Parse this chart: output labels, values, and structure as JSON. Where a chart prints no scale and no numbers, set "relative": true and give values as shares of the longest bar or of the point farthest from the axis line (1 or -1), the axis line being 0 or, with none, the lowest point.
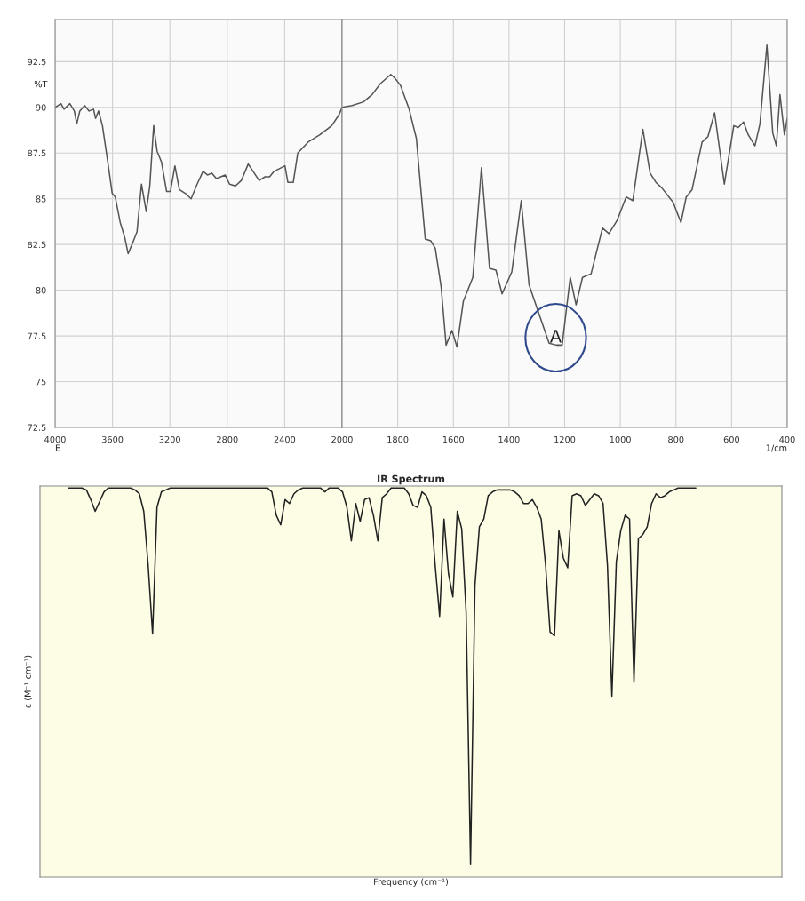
{
  "chart_data": [
    {
      "type": "line",
      "ylabel": "%T",
      "xlabel": "E",
      "grid": true,
      "tick_labels": "xy",
      "xlim": [
        4000,
        2000
      ],
      "ylim": [
        72.5,
        94.8
      ],
      "xticks": [
        4000,
        3600,
        3200,
        2800,
        2400,
        2000
      ],
      "yticks": [
        72.5,
        75,
        77.5,
        80,
        82.5,
        85,
        87.5,
        90,
        92.5
      ],
      "series": [
        {
          "color": "#555555",
          "x": [
            4000,
            3959,
            3938,
            3897,
            3866,
            3849,
            3828,
            3794,
            3763,
            3732,
            3718,
            3697,
            3670,
            3629,
            3602,
            3581,
            3546,
            3515,
            3491,
            3464,
            3429,
            3398,
            3365,
            3340,
            3313,
            3289,
            3258,
            3223,
            3196,
            3165,
            3134,
            3093,
            3052,
            3010,
            2969,
            2938,
            2907,
            2876,
            2815,
            2784,
            2743,
            2702,
            2654,
            2578,
            2537,
            2505,
            2474,
            2398,
            2378,
            2340,
            2309,
            2237,
            2155,
            2072,
            2021,
            2000
          ],
          "values": [
            90.0,
            90.2,
            89.9,
            90.2,
            89.8,
            89.1,
            89.8,
            90.1,
            89.8,
            89.9,
            89.4,
            89.8,
            89.0,
            86.8,
            85.3,
            85.1,
            83.7,
            82.9,
            82.0,
            82.5,
            83.2,
            85.8,
            84.3,
            85.7,
            89.0,
            87.6,
            87.0,
            85.4,
            85.4,
            86.8,
            85.5,
            85.3,
            85.0,
            85.8,
            86.5,
            86.3,
            86.4,
            86.1,
            86.3,
            85.8,
            85.7,
            86.0,
            86.9,
            86.0,
            86.2,
            86.2,
            86.5,
            86.8,
            85.9,
            85.9,
            87.5,
            88.1,
            88.5,
            89.0,
            89.6,
            90.0
          ]
        }
      ]
    },
    {
      "type": "line",
      "xlabel": "1/cm",
      "grid": true,
      "tick_labels": "x",
      "xlim": [
        2000,
        400
      ],
      "ylim": [
        72.5,
        94.8
      ],
      "xticks": [
        1800,
        1600,
        1400,
        1200,
        1000,
        800,
        600,
        400
      ],
      "yticks": [
        72.5,
        75,
        77.5,
        80,
        82.5,
        85,
        87.5,
        90,
        92.5
      ],
      "annotations": [
        "A"
      ],
      "series": [
        {
          "color": "#555555",
          "x": [
            2000,
            1964,
            1923,
            1892,
            1862,
            1825,
            1810,
            1790,
            1759,
            1733,
            1701,
            1681,
            1665,
            1644,
            1626,
            1605,
            1587,
            1564,
            1530,
            1499,
            1470,
            1447,
            1425,
            1390,
            1356,
            1328,
            1292,
            1256,
            1230,
            1209,
            1180,
            1159,
            1136,
            1105,
            1064,
            1041,
            1012,
            979,
            955,
            919,
            893,
            872,
            851,
            810,
            782,
            763,
            742,
            706,
            685,
            661,
            626,
            592,
            576,
            557,
            540,
            516,
            498,
            473,
            452,
            439,
            426,
            410,
            400
          ],
          "values": [
            90.0,
            90.1,
            90.3,
            90.7,
            91.3,
            91.8,
            91.6,
            91.2,
            89.9,
            88.3,
            82.8,
            82.7,
            82.3,
            80.2,
            77.0,
            77.8,
            76.9,
            79.4,
            80.7,
            86.7,
            81.2,
            81.1,
            79.8,
            81.0,
            84.9,
            80.3,
            78.7,
            77.1,
            77.0,
            77.0,
            80.7,
            79.2,
            80.7,
            80.9,
            83.4,
            83.1,
            83.8,
            85.1,
            84.9,
            88.8,
            86.4,
            85.9,
            85.6,
            84.8,
            83.7,
            85.1,
            85.5,
            88.1,
            88.4,
            89.7,
            85.8,
            89.0,
            88.9,
            89.2,
            88.5,
            87.9,
            89.1,
            93.4,
            88.6,
            87.9,
            90.7,
            88.5,
            89.4
          ]
        }
      ]
    },
    {
      "type": "line",
      "title": "IR Spectrum",
      "xlabel": "Frequency (cm⁻¹)",
      "ylabel": "ε (M⁻¹ cm⁻¹)",
      "relative": true,
      "tick_labels": false,
      "categories": [
        null,
        null,
        null,
        null,
        null,
        null,
        null,
        null,
        null,
        null,
        null,
        null,
        null,
        null,
        null,
        null,
        null,
        null,
        null,
        null,
        null,
        null,
        null,
        null,
        null,
        null,
        null,
        null,
        null,
        null,
        null,
        null,
        null,
        null,
        null,
        null,
        null,
        null,
        null,
        null,
        null,
        null,
        null,
        null,
        null,
        null,
        null,
        null,
        null,
        null,
        null,
        null,
        null,
        null,
        null,
        null,
        null,
        null,
        null,
        null,
        null,
        null,
        null,
        null,
        null,
        null,
        null,
        null,
        null,
        null,
        null,
        null,
        null,
        null,
        null,
        null,
        null,
        null,
        null,
        null,
        null,
        null,
        null,
        null,
        null,
        null,
        null,
        null,
        null,
        null,
        null,
        null,
        null,
        null,
        null,
        null,
        null,
        null,
        null,
        null,
        null,
        null,
        null,
        null,
        null,
        null,
        null,
        null,
        null,
        null,
        null,
        null,
        null,
        null,
        null,
        null,
        null,
        null,
        null,
        null,
        null,
        null,
        null,
        null,
        null,
        null,
        null,
        null,
        null,
        null,
        null,
        null,
        null,
        null,
        null,
        null,
        null,
        null,
        null,
        null,
        null,
        null,
        null,
        null,
        null,
        null,
        null,
        null,
        null,
        null,
        null,
        null,
        null,
        null,
        null,
        null,
        null,
        null,
        null,
        null,
        null,
        null,
        null,
        null,
        null,
        null,
        null,
        null
      ],
      "series": [
        {
          "color": "#222222",
          "values": [
            null,
            null,
            null,
            null,
            null,
            null,
            1.0,
            1.0,
            1.0,
            1.0,
            0.995,
            0.97,
            0.94,
            0.965,
            0.99,
            1.0,
            1.0,
            1.0,
            1.0,
            1.0,
            1.0,
            0.995,
            0.985,
            0.94,
            0.8,
            0.625,
            0.95,
            0.99,
            0.995,
            1.0,
            1.0,
            1.0,
            1.0,
            1.0,
            1.0,
            1.0,
            1.0,
            1.0,
            1.0,
            1.0,
            1.0,
            1.0,
            1.0,
            1.0,
            1.0,
            1.0,
            1.0,
            1.0,
            1.0,
            1.0,
            1.0,
            1.0,
            0.99,
            0.93,
            0.905,
            0.97,
            0.96,
            0.985,
            0.995,
            1.0,
            1.0,
            1.0,
            1.0,
            1.0,
            0.99,
            1.0,
            1.0,
            1.0,
            0.99,
            0.95,
            0.864,
            0.96,
            0.914,
            0.97,
            0.975,
            0.93,
            0.864,
            0.975,
            0.985,
            1.0,
            1.0,
            1.0,
            1.0,
            0.985,
            0.955,
            0.95,
            0.99,
            0.98,
            0.95,
            0.8,
            0.67,
            0.92,
            0.78,
            0.72,
            0.94,
            0.895,
            0.68,
            0.034,
            0.75,
            0.9,
            0.92,
            0.98,
            0.99,
            0.995,
            0.995,
            0.995,
            0.995,
            0.99,
            0.98,
            0.96,
            0.96,
            0.97,
            0.95,
            0.92,
            0.8,
            0.63,
            0.62,
            0.89,
            0.82,
            0.795,
            0.98,
            0.985,
            0.98,
            0.955,
            0.97,
            0.985,
            0.98,
            0.96,
            0.8,
            0.465,
            0.81,
            0.89,
            0.93,
            0.92,
            0.5,
            0.87,
            0.88,
            0.9,
            0.96,
            0.985,
            0.975,
            0.98,
            0.99,
            0.995,
            1.0,
            1.0,
            1.0,
            1.0,
            1.0,
            null,
            null,
            null,
            null,
            null,
            null,
            null,
            null,
            null,
            null,
            null,
            null,
            null,
            null,
            null,
            null,
            null,
            null,
            null
          ]
        }
      ]
    }
  ]
}
